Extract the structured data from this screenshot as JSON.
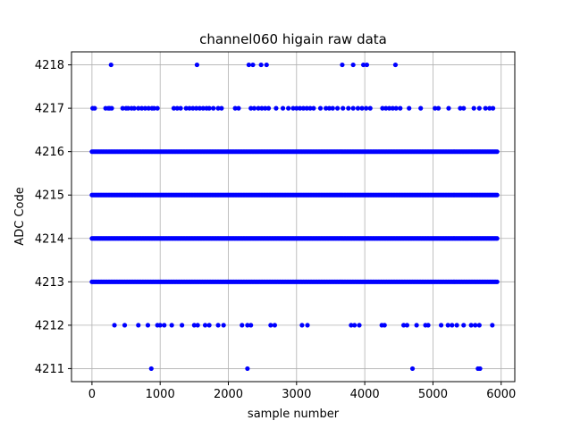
{
  "chart_data": {
    "type": "scatter",
    "title": "channel060 higain raw data",
    "xlabel": "sample number",
    "ylabel": "ADC Code",
    "xlim": [
      -300,
      6200
    ],
    "ylim": [
      4210.7,
      4218.3
    ],
    "xticks": [
      0,
      1000,
      2000,
      3000,
      4000,
      5000,
      6000
    ],
    "yticks": [
      4211,
      4212,
      4213,
      4214,
      4215,
      4216,
      4217,
      4218
    ],
    "grid": true,
    "marker_color": "#0000ff",
    "series": [
      {
        "dense_levels": [
          {
            "y": 4216,
            "x_range": [
              0,
              5950
            ]
          },
          {
            "y": 4215,
            "x_range": [
              0,
              5950
            ]
          },
          {
            "y": 4214,
            "x_range": [
              0,
              5950
            ]
          },
          {
            "y": 4213,
            "x_range": [
              0,
              5950
            ]
          }
        ],
        "points": [
          {
            "x": 280,
            "y": 4218
          },
          {
            "x": 1540,
            "y": 4218
          },
          {
            "x": 2300,
            "y": 4218
          },
          {
            "x": 2360,
            "y": 4218
          },
          {
            "x": 2480,
            "y": 4218
          },
          {
            "x": 2560,
            "y": 4218
          },
          {
            "x": 3670,
            "y": 4218
          },
          {
            "x": 3830,
            "y": 4218
          },
          {
            "x": 3980,
            "y": 4218
          },
          {
            "x": 4030,
            "y": 4218
          },
          {
            "x": 4450,
            "y": 4218
          },
          {
            "x": 10,
            "y": 4217
          },
          {
            "x": 40,
            "y": 4217
          },
          {
            "x": 200,
            "y": 4217
          },
          {
            "x": 240,
            "y": 4217
          },
          {
            "x": 260,
            "y": 4217
          },
          {
            "x": 290,
            "y": 4217
          },
          {
            "x": 450,
            "y": 4217
          },
          {
            "x": 500,
            "y": 4217
          },
          {
            "x": 530,
            "y": 4217
          },
          {
            "x": 580,
            "y": 4217
          },
          {
            "x": 620,
            "y": 4217
          },
          {
            "x": 680,
            "y": 4217
          },
          {
            "x": 730,
            "y": 4217
          },
          {
            "x": 780,
            "y": 4217
          },
          {
            "x": 830,
            "y": 4217
          },
          {
            "x": 880,
            "y": 4217
          },
          {
            "x": 910,
            "y": 4217
          },
          {
            "x": 960,
            "y": 4217
          },
          {
            "x": 1200,
            "y": 4217
          },
          {
            "x": 1250,
            "y": 4217
          },
          {
            "x": 1300,
            "y": 4217
          },
          {
            "x": 1380,
            "y": 4217
          },
          {
            "x": 1430,
            "y": 4217
          },
          {
            "x": 1480,
            "y": 4217
          },
          {
            "x": 1530,
            "y": 4217
          },
          {
            "x": 1580,
            "y": 4217
          },
          {
            "x": 1630,
            "y": 4217
          },
          {
            "x": 1680,
            "y": 4217
          },
          {
            "x": 1720,
            "y": 4217
          },
          {
            "x": 1780,
            "y": 4217
          },
          {
            "x": 1850,
            "y": 4217
          },
          {
            "x": 1900,
            "y": 4217
          },
          {
            "x": 2100,
            "y": 4217
          },
          {
            "x": 2150,
            "y": 4217
          },
          {
            "x": 2330,
            "y": 4217
          },
          {
            "x": 2380,
            "y": 4217
          },
          {
            "x": 2440,
            "y": 4217
          },
          {
            "x": 2490,
            "y": 4217
          },
          {
            "x": 2540,
            "y": 4217
          },
          {
            "x": 2590,
            "y": 4217
          },
          {
            "x": 2700,
            "y": 4217
          },
          {
            "x": 2800,
            "y": 4217
          },
          {
            "x": 2880,
            "y": 4217
          },
          {
            "x": 2950,
            "y": 4217
          },
          {
            "x": 3000,
            "y": 4217
          },
          {
            "x": 3050,
            "y": 4217
          },
          {
            "x": 3100,
            "y": 4217
          },
          {
            "x": 3150,
            "y": 4217
          },
          {
            "x": 3200,
            "y": 4217
          },
          {
            "x": 3250,
            "y": 4217
          },
          {
            "x": 3350,
            "y": 4217
          },
          {
            "x": 3430,
            "y": 4217
          },
          {
            "x": 3480,
            "y": 4217
          },
          {
            "x": 3530,
            "y": 4217
          },
          {
            "x": 3600,
            "y": 4217
          },
          {
            "x": 3680,
            "y": 4217
          },
          {
            "x": 3760,
            "y": 4217
          },
          {
            "x": 3830,
            "y": 4217
          },
          {
            "x": 3900,
            "y": 4217
          },
          {
            "x": 3960,
            "y": 4217
          },
          {
            "x": 4020,
            "y": 4217
          },
          {
            "x": 4080,
            "y": 4217
          },
          {
            "x": 4260,
            "y": 4217
          },
          {
            "x": 4310,
            "y": 4217
          },
          {
            "x": 4360,
            "y": 4217
          },
          {
            "x": 4410,
            "y": 4217
          },
          {
            "x": 4460,
            "y": 4217
          },
          {
            "x": 4520,
            "y": 4217
          },
          {
            "x": 4650,
            "y": 4217
          },
          {
            "x": 4820,
            "y": 4217
          },
          {
            "x": 5030,
            "y": 4217
          },
          {
            "x": 5080,
            "y": 4217
          },
          {
            "x": 5230,
            "y": 4217
          },
          {
            "x": 5400,
            "y": 4217
          },
          {
            "x": 5450,
            "y": 4217
          },
          {
            "x": 5600,
            "y": 4217
          },
          {
            "x": 5680,
            "y": 4217
          },
          {
            "x": 5770,
            "y": 4217
          },
          {
            "x": 5830,
            "y": 4217
          },
          {
            "x": 5880,
            "y": 4217
          },
          {
            "x": 330,
            "y": 4212
          },
          {
            "x": 480,
            "y": 4212
          },
          {
            "x": 680,
            "y": 4212
          },
          {
            "x": 820,
            "y": 4212
          },
          {
            "x": 960,
            "y": 4212
          },
          {
            "x": 1000,
            "y": 4212
          },
          {
            "x": 1060,
            "y": 4212
          },
          {
            "x": 1170,
            "y": 4212
          },
          {
            "x": 1320,
            "y": 4212
          },
          {
            "x": 1500,
            "y": 4212
          },
          {
            "x": 1550,
            "y": 4212
          },
          {
            "x": 1660,
            "y": 4212
          },
          {
            "x": 1720,
            "y": 4212
          },
          {
            "x": 1850,
            "y": 4212
          },
          {
            "x": 1930,
            "y": 4212
          },
          {
            "x": 2200,
            "y": 4212
          },
          {
            "x": 2280,
            "y": 4212
          },
          {
            "x": 2330,
            "y": 4212
          },
          {
            "x": 2620,
            "y": 4212
          },
          {
            "x": 2680,
            "y": 4212
          },
          {
            "x": 3080,
            "y": 4212
          },
          {
            "x": 3160,
            "y": 4212
          },
          {
            "x": 3800,
            "y": 4212
          },
          {
            "x": 3850,
            "y": 4212
          },
          {
            "x": 3920,
            "y": 4212
          },
          {
            "x": 4250,
            "y": 4212
          },
          {
            "x": 4290,
            "y": 4212
          },
          {
            "x": 4570,
            "y": 4212
          },
          {
            "x": 4620,
            "y": 4212
          },
          {
            "x": 4760,
            "y": 4212
          },
          {
            "x": 4890,
            "y": 4212
          },
          {
            "x": 4930,
            "y": 4212
          },
          {
            "x": 5120,
            "y": 4212
          },
          {
            "x": 5220,
            "y": 4212
          },
          {
            "x": 5280,
            "y": 4212
          },
          {
            "x": 5350,
            "y": 4212
          },
          {
            "x": 5450,
            "y": 4212
          },
          {
            "x": 5560,
            "y": 4212
          },
          {
            "x": 5620,
            "y": 4212
          },
          {
            "x": 5680,
            "y": 4212
          },
          {
            "x": 5870,
            "y": 4212
          },
          {
            "x": 870,
            "y": 4211
          },
          {
            "x": 2280,
            "y": 4211
          },
          {
            "x": 4700,
            "y": 4211
          },
          {
            "x": 5660,
            "y": 4211
          },
          {
            "x": 5690,
            "y": 4211
          }
        ]
      }
    ]
  }
}
